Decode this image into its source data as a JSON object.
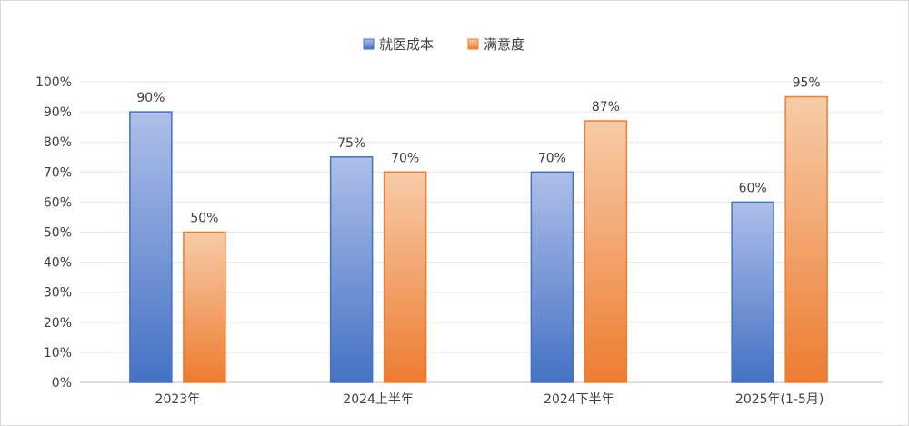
{
  "chart_data": {
    "type": "bar",
    "categories": [
      "2023年",
      "2024上半年",
      "2024下半年",
      "2025年(1-5月)"
    ],
    "series": [
      {
        "name": "就医成本",
        "values": [
          90,
          75,
          70,
          60
        ],
        "labels": [
          "90%",
          "75%",
          "70%",
          "60%"
        ],
        "color_top": "#aebfe9",
        "color_bottom": "#4472c4",
        "border": "#4472c4"
      },
      {
        "name": "满意度",
        "values": [
          50,
          70,
          87,
          95
        ],
        "labels": [
          "50%",
          "70%",
          "87%",
          "95%"
        ],
        "color_top": "#f7cba8",
        "color_bottom": "#ed7d31",
        "border": "#ed7d31"
      }
    ],
    "ylim": [
      0,
      100
    ],
    "yticks": [
      "0%",
      "10%",
      "20%",
      "30%",
      "40%",
      "50%",
      "60%",
      "70%",
      "80%",
      "90%",
      "100%"
    ],
    "grid": true,
    "grid_color": "#e6e6e6",
    "legend_position": "top-center",
    "title": "",
    "xlabel": "",
    "ylabel": ""
  }
}
